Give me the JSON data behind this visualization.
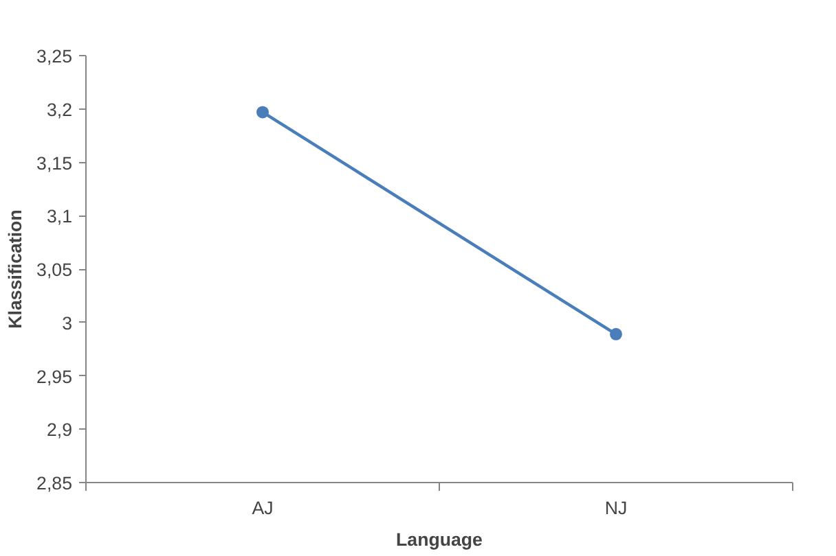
{
  "chart_data": {
    "type": "line",
    "xlabel": "Language",
    "ylabel": "Klassification",
    "categories": [
      "AJ",
      "NJ"
    ],
    "series": [
      {
        "color": "#4a7ebb",
        "values": [
          3.197,
          2.989
        ]
      }
    ],
    "ylim": [
      2.85,
      3.25
    ],
    "yticks": [
      {
        "value": 2.85,
        "label": "2,85"
      },
      {
        "value": 2.9,
        "label": "2,9"
      },
      {
        "value": 2.95,
        "label": "2,95"
      },
      {
        "value": 3,
        "label": "3"
      },
      {
        "value": 3.05,
        "label": "3,05"
      },
      {
        "value": 3.1,
        "label": "3,1"
      },
      {
        "value": 3.15,
        "label": "3,15"
      },
      {
        "value": 3.2,
        "label": "3,2"
      },
      {
        "value": 3.25,
        "label": "3,25"
      }
    ],
    "grid": false,
    "marker": "circle",
    "line_style": "solid"
  }
}
